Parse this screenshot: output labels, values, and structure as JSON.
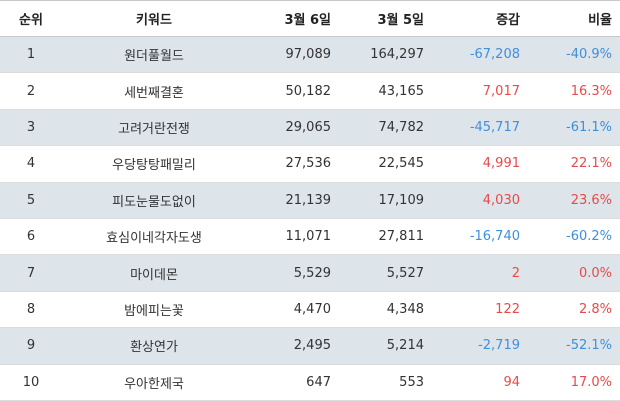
{
  "headers": {
    "rank": "순위",
    "keyword": "키워드",
    "date1": "3월 6일",
    "date2": "3월 5일",
    "change": "증감",
    "ratio": "비율"
  },
  "colors": {
    "negative": "#3f8fdc",
    "positive": "#e84a4a",
    "stripe": "#dde4ea"
  },
  "rows": [
    {
      "rank": "1",
      "keyword": "원더풀월드",
      "date1": "97,089",
      "date2": "164,297",
      "change": "-67,208",
      "ratio": "-40.9%"
    },
    {
      "rank": "2",
      "keyword": "세번째결혼",
      "date1": "50,182",
      "date2": "43,165",
      "change": "7,017",
      "ratio": "16.3%"
    },
    {
      "rank": "3",
      "keyword": "고려거란전쟁",
      "date1": "29,065",
      "date2": "74,782",
      "change": "-45,717",
      "ratio": "-61.1%"
    },
    {
      "rank": "4",
      "keyword": "우당탕탕패밀리",
      "date1": "27,536",
      "date2": "22,545",
      "change": "4,991",
      "ratio": "22.1%"
    },
    {
      "rank": "5",
      "keyword": "피도눈물도없이",
      "date1": "21,139",
      "date2": "17,109",
      "change": "4,030",
      "ratio": "23.6%"
    },
    {
      "rank": "6",
      "keyword": "효심이네각자도생",
      "date1": "11,071",
      "date2": "27,811",
      "change": "-16,740",
      "ratio": "-60.2%"
    },
    {
      "rank": "7",
      "keyword": "마이데몬",
      "date1": "5,529",
      "date2": "5,527",
      "change": "2",
      "ratio": "0.0%"
    },
    {
      "rank": "8",
      "keyword": "밤에피는꽃",
      "date1": "4,470",
      "date2": "4,348",
      "change": "122",
      "ratio": "2.8%"
    },
    {
      "rank": "9",
      "keyword": "환상연가",
      "date1": "2,495",
      "date2": "5,214",
      "change": "-2,719",
      "ratio": "-52.1%"
    },
    {
      "rank": "10",
      "keyword": "우아한제국",
      "date1": "647",
      "date2": "553",
      "change": "94",
      "ratio": "17.0%"
    }
  ]
}
